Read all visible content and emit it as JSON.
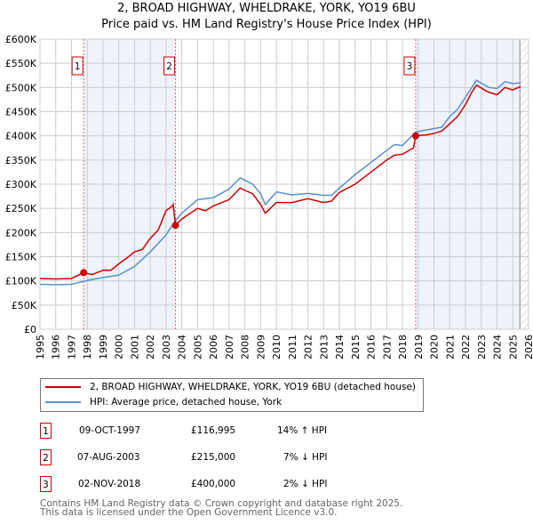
{
  "title": "2, BROAD HIGHWAY, WHELDRAKE, YORK, YO19 6BU",
  "subtitle": "Price paid vs. HM Land Registry's House Price Index (HPI)",
  "chart_data": {
    "type": "line",
    "xlim": [
      1995,
      2026
    ],
    "ylim": [
      0,
      600000
    ],
    "x_ticks": [
      "1995",
      "1996",
      "1997",
      "1998",
      "1999",
      "2000",
      "2001",
      "2002",
      "2003",
      "2004",
      "2005",
      "2006",
      "2007",
      "2008",
      "2009",
      "2010",
      "2011",
      "2012",
      "2013",
      "2014",
      "2015",
      "2016",
      "2017",
      "2018",
      "2019",
      "2020",
      "2021",
      "2022",
      "2023",
      "2024",
      "2025",
      "2026"
    ],
    "y_ticks": [
      {
        "v": 0,
        "label": "£0"
      },
      {
        "v": 50000,
        "label": "£50K"
      },
      {
        "v": 100000,
        "label": "£100K"
      },
      {
        "v": 150000,
        "label": "£150K"
      },
      {
        "v": 200000,
        "label": "£200K"
      },
      {
        "v": 250000,
        "label": "£250K"
      },
      {
        "v": 300000,
        "label": "£300K"
      },
      {
        "v": 350000,
        "label": "£350K"
      },
      {
        "v": 400000,
        "label": "£400K"
      },
      {
        "v": 450000,
        "label": "£450K"
      },
      {
        "v": 500000,
        "label": "£500K"
      },
      {
        "v": 550000,
        "label": "£550K"
      },
      {
        "v": 600000,
        "label": "£600K"
      }
    ],
    "grid": true,
    "series": [
      {
        "name": "2, BROAD HIGHWAY, WHELDRAKE, YORK, YO19 6BU (detached house)",
        "color": "#cc0000",
        "x": [
          1995,
          1996,
          1997,
          1997.77,
          1998.3,
          1999,
          1999.5,
          2000,
          2000.5,
          2001,
          2001.5,
          2002,
          2002.5,
          2003,
          2003.4,
          2003.45,
          2003.6,
          2004,
          2005,
          2005.5,
          2006,
          2007,
          2007.7,
          2008.5,
          2009,
          2009.3,
          2010,
          2011,
          2012,
          2013,
          2013.5,
          2014,
          2015,
          2016,
          2017,
          2017.5,
          2018,
          2018.7,
          2018.84,
          2019.5,
          2020,
          2020.5,
          2021,
          2021.5,
          2022,
          2022.4,
          2022.7,
          2023.2,
          2023.5,
          2024,
          2024.5,
          2025,
          2025.5
        ],
        "y": [
          105000,
          104000,
          105000,
          116995,
          113000,
          122000,
          122000,
          135000,
          147000,
          160000,
          165000,
          188000,
          205000,
          245000,
          255000,
          258000,
          215000,
          228000,
          250000,
          245000,
          255000,
          268000,
          292000,
          280000,
          258000,
          240000,
          262000,
          262000,
          270000,
          262000,
          265000,
          283000,
          300000,
          325000,
          350000,
          360000,
          362000,
          375000,
          400000,
          402000,
          405000,
          410000,
          425000,
          440000,
          465000,
          490000,
          505000,
          495000,
          490000,
          485000,
          500000,
          495000,
          502000
        ]
      },
      {
        "name": "HPI: Average price, detached house, York",
        "color": "#5b8fd0",
        "x": [
          1995,
          1996,
          1997,
          1998,
          1999,
          2000,
          2001,
          2002,
          2003,
          2003.6,
          2004,
          2005,
          2006,
          2007,
          2007.7,
          2008.5,
          2009,
          2009.3,
          2010,
          2011,
          2012,
          2013,
          2013.5,
          2014,
          2015,
          2016,
          2017,
          2017.5,
          2018,
          2018.84,
          2019.5,
          2020,
          2020.5,
          2021,
          2021.5,
          2022,
          2022.4,
          2022.7,
          2023.2,
          2023.5,
          2024,
          2024.5,
          2025,
          2025.5
        ],
        "y": [
          93000,
          92000,
          93000,
          101000,
          107000,
          112000,
          130000,
          160000,
          195000,
          225000,
          240000,
          268000,
          272000,
          290000,
          313000,
          300000,
          280000,
          258000,
          284000,
          278000,
          281000,
          277000,
          277000,
          292000,
          320000,
          345000,
          370000,
          382000,
          380000,
          408000,
          412000,
          415000,
          418000,
          440000,
          455000,
          480000,
          500000,
          515000,
          505000,
          500000,
          498000,
          512000,
          508000,
          510000
        ]
      }
    ],
    "sales": [
      {
        "id": "1",
        "x": 1997.77,
        "y": 116995
      },
      {
        "id": "2",
        "x": 2003.6,
        "y": 215000
      },
      {
        "id": "3",
        "x": 2018.84,
        "y": 400000
      }
    ],
    "shaded_ranges": [
      [
        1997.77,
        2003.6
      ],
      [
        2018.84,
        2025.45
      ]
    ],
    "hatch_from": 2025.45,
    "legend_placement": "below"
  },
  "legend": [
    "2, BROAD HIGHWAY, WHELDRAKE, YORK, YO19 6BU (detached house)",
    "HPI: Average price, detached house, York"
  ],
  "transactions": [
    {
      "id": "1",
      "date": "09-OCT-1997",
      "price": "£116,995",
      "hpi": "14% ↑ HPI"
    },
    {
      "id": "2",
      "date": "07-AUG-2003",
      "price": "£215,000",
      "hpi": "7% ↓ HPI"
    },
    {
      "id": "3",
      "date": "02-NOV-2018",
      "price": "£400,000",
      "hpi": "2% ↓ HPI"
    }
  ],
  "footer": [
    "Contains HM Land Registry data © Crown copyright and database right 2025.",
    "This data is licensed under the Open Government Licence v3.0."
  ]
}
